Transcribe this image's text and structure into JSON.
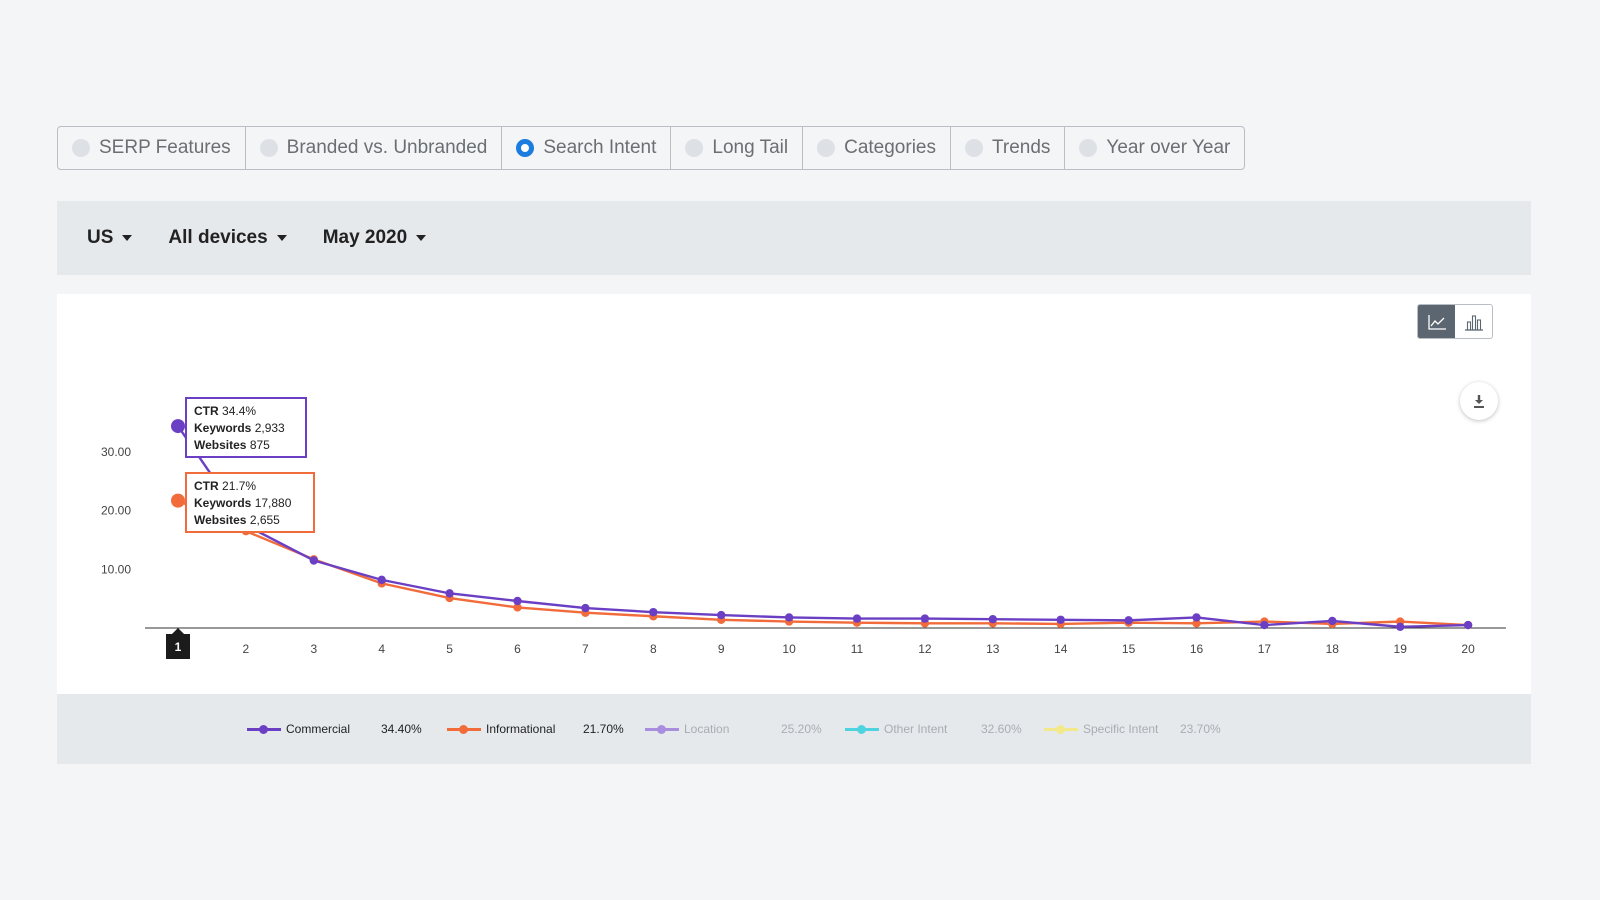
{
  "tabs": [
    {
      "label": "SERP Features",
      "selected": false
    },
    {
      "label": "Branded vs. Unbranded",
      "selected": false
    },
    {
      "label": "Search Intent",
      "selected": true
    },
    {
      "label": "Long Tail",
      "selected": false
    },
    {
      "label": "Categories",
      "selected": false
    },
    {
      "label": "Trends",
      "selected": false
    },
    {
      "label": "Year over Year",
      "selected": false
    }
  ],
  "filters": {
    "country": "US",
    "device": "All devices",
    "month": "May 2020"
  },
  "view_toggle": {
    "active": "line-chart-icon",
    "options": [
      "line-chart-icon",
      "bar-chart-icon"
    ]
  },
  "tooltips": [
    {
      "ctr_label": "CTR",
      "ctr": "34.4%",
      "kw_label": "Keywords",
      "keywords": "2,933",
      "web_label": "Websites",
      "websites": "875",
      "color": "#6b3fc4"
    },
    {
      "ctr_label": "CTR",
      "ctr": "21.7%",
      "kw_label": "Keywords",
      "keywords": "17,880",
      "web_label": "Websites",
      "websites": "2,655",
      "color": "#f26b3a"
    }
  ],
  "highlighted_x": "1",
  "chart_data": {
    "type": "line",
    "x": [
      1,
      2,
      3,
      4,
      5,
      6,
      7,
      8,
      9,
      10,
      11,
      12,
      13,
      14,
      15,
      16,
      17,
      18,
      19,
      20
    ],
    "yticks": [
      "10.00",
      "20.00",
      "30.00"
    ],
    "ylim": [
      0,
      35
    ],
    "grid": false,
    "legend_position": "bottom",
    "series": [
      {
        "name": "Commercial",
        "share": "34.40%",
        "color": "#6b3fc4",
        "active": true,
        "values": [
          34.4,
          17.5,
          11.5,
          8.2,
          5.9,
          4.6,
          3.4,
          2.7,
          2.2,
          1.8,
          1.6,
          1.6,
          1.5,
          1.4,
          1.3,
          1.8,
          0.5,
          1.2,
          0.2,
          0.5
        ]
      },
      {
        "name": "Informational",
        "share": "21.70%",
        "color": "#f26b3a",
        "active": true,
        "values": [
          21.7,
          16.5,
          11.7,
          7.6,
          5.1,
          3.5,
          2.6,
          2.0,
          1.4,
          1.1,
          0.9,
          0.8,
          0.8,
          0.7,
          0.9,
          0.8,
          1.1,
          0.7,
          1.1,
          0.5
        ]
      },
      {
        "name": "Location",
        "share": "25.20%",
        "color": "#a98ee0",
        "active": false
      },
      {
        "name": "Other Intent",
        "share": "32.60%",
        "color": "#4fd3df",
        "active": false
      },
      {
        "name": "Specific Intent",
        "share": "23.70%",
        "color": "#f3e98a",
        "active": false
      }
    ]
  }
}
